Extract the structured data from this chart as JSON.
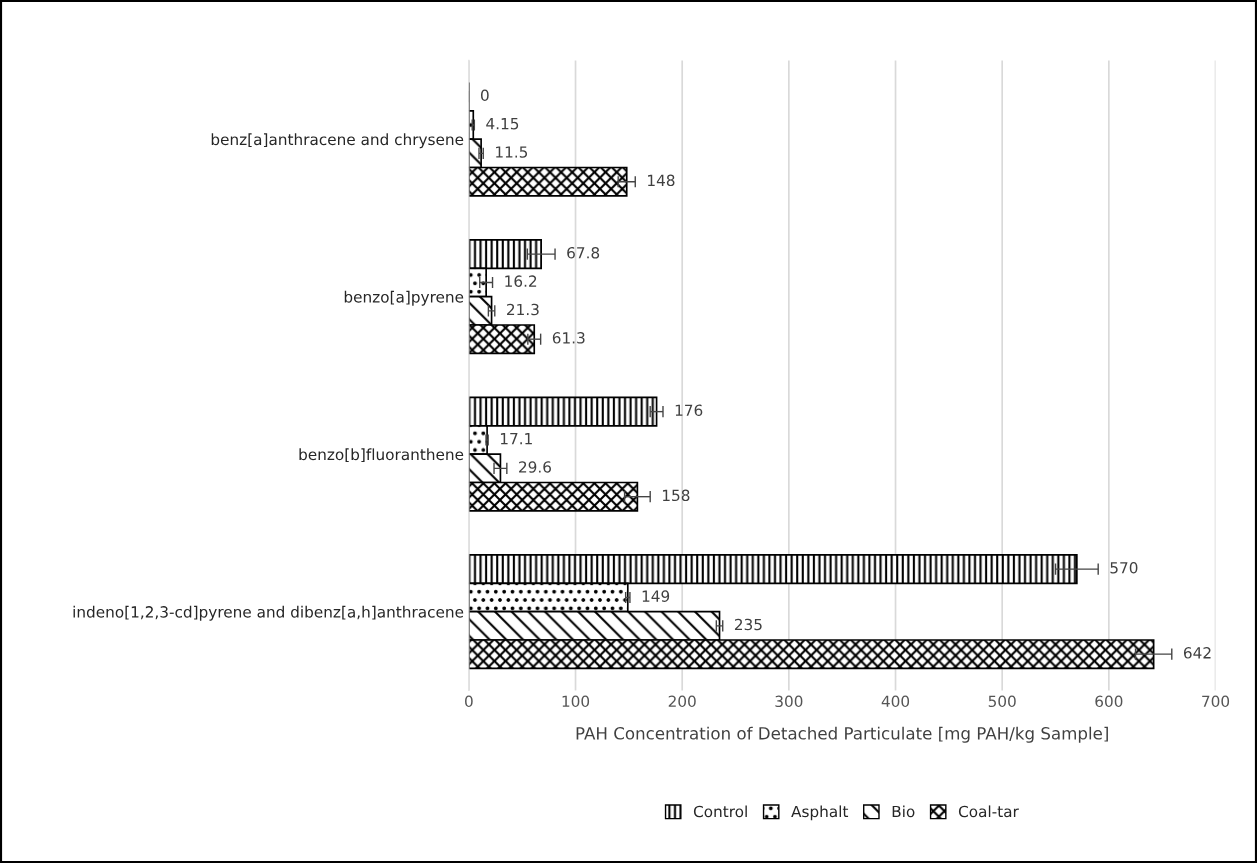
{
  "chart_data": {
    "type": "bar",
    "orientation": "horizontal",
    "xlabel": "PAH Concentration of Detached Particulate [mg PAH/kg Sample]",
    "categories": [
      "benz[a]anthracene and chrysene",
      "benzo[a]pyrene",
      "benzo[b]fluoranthene",
      "indeno[1,2,3-cd]pyrene and dibenz[a,h]anthracene"
    ],
    "series": [
      {
        "name": "Control",
        "color": "#000000",
        "values": [
          0,
          67.8,
          176,
          570
        ],
        "errors": [
          null,
          13,
          6,
          20
        ]
      },
      {
        "name": "Asphalt",
        "color": "#000000",
        "values": [
          4.15,
          16.2,
          17.1,
          149
        ],
        "errors": [
          1,
          6,
          1,
          2
        ]
      },
      {
        "name": "Bio",
        "color": "#000000",
        "values": [
          11.5,
          21.3,
          29.6,
          235
        ],
        "errors": [
          2,
          3,
          6,
          3
        ]
      },
      {
        "name": "Coal-tar",
        "color": "#000000",
        "values": [
          148,
          61.3,
          158,
          642
        ],
        "errors": [
          8,
          6,
          12,
          17
        ]
      }
    ],
    "xlim": [
      0,
      700
    ],
    "xticks": [
      0,
      100,
      200,
      300,
      400,
      500,
      600,
      700
    ],
    "grid": "x",
    "legend": "bottom",
    "data_labels": true
  }
}
